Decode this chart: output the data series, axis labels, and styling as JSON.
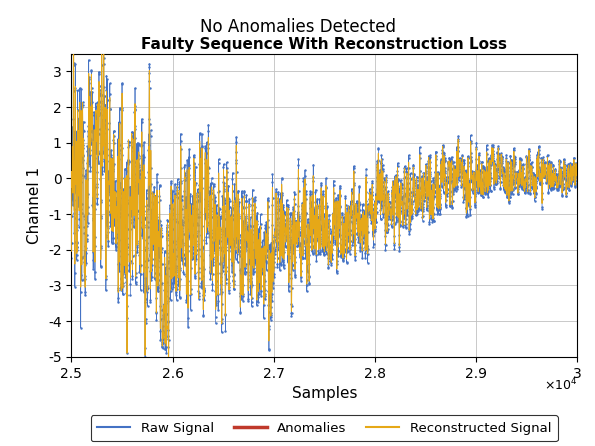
{
  "title_top": "No Anomalies Detected",
  "title_bold": "Faulty Sequence With Reconstruction Loss",
  "xlabel": "Samples",
  "ylabel": "Channel 1",
  "xlim": [
    25000,
    30000
  ],
  "ylim": [
    -5,
    3.5
  ],
  "yticks": [
    -5,
    -4,
    -3,
    -2,
    -1,
    0,
    1,
    2,
    3
  ],
  "xticks": [
    25000,
    26000,
    27000,
    28000,
    29000,
    30000
  ],
  "xtick_labels": [
    "2.5",
    "2.6",
    "2.7",
    "2.8",
    "2.9",
    "3"
  ],
  "x_scale_label": "$\\times10^4$",
  "raw_color": "#4472C4",
  "anomaly_color": "#C0392B",
  "recon_color": "#E6A817",
  "legend_labels": [
    "Raw Signal",
    "Anomalies",
    "Reconstructed Signal"
  ],
  "seed": 42,
  "n_samples": 5000,
  "x_start": 25000,
  "figsize": [
    5.95,
    4.46
  ],
  "dpi": 100
}
